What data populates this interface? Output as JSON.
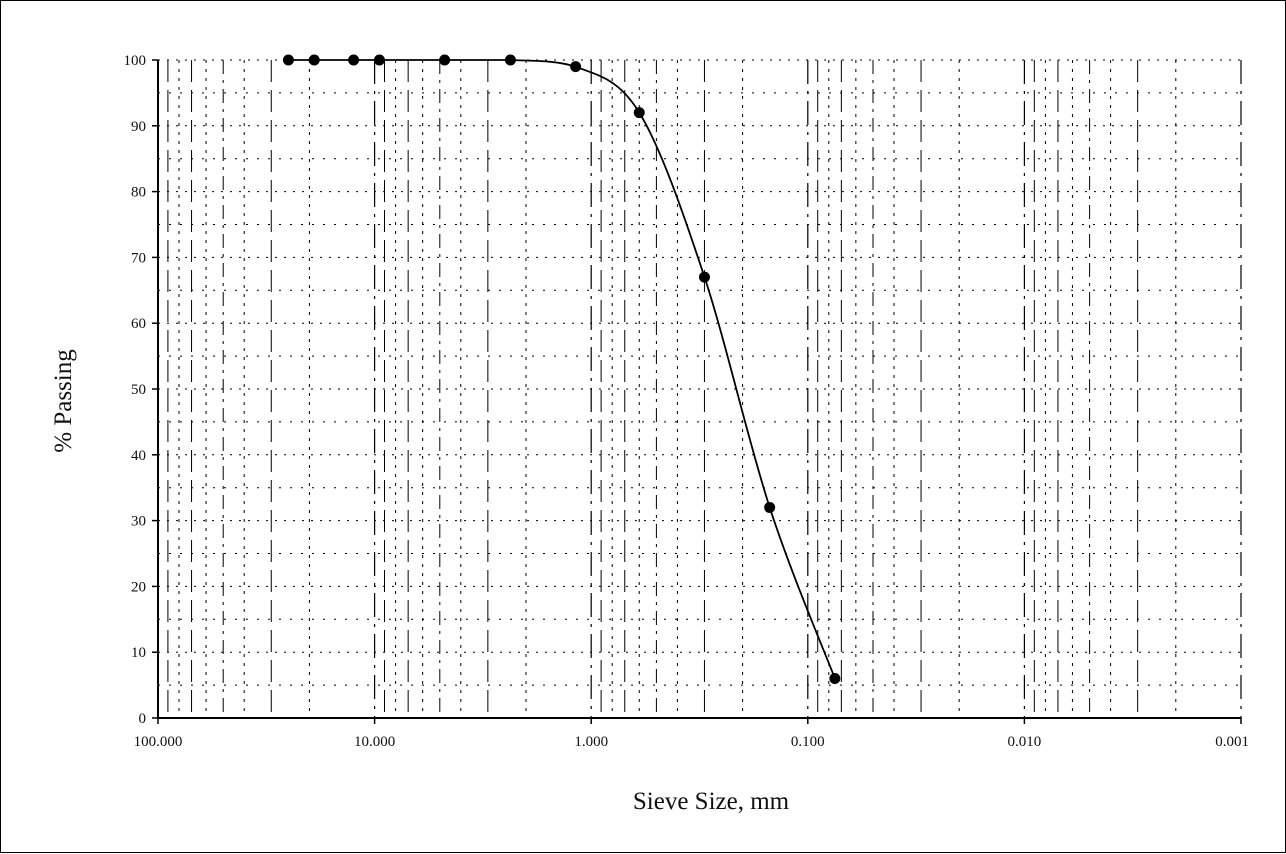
{
  "chart_data": {
    "type": "line",
    "xlabel": "Sieve Size, mm",
    "ylabel": "% Passing",
    "x_scale": "log",
    "x_reversed": true,
    "xlim": [
      100,
      0.001
    ],
    "ylim": [
      0,
      100
    ],
    "x_ticks": [
      100,
      10,
      1,
      0.1,
      0.01,
      0.001
    ],
    "x_tick_labels": [
      "100.000",
      "10.000",
      "1.000",
      "0.100",
      "0.010",
      "0.001"
    ],
    "y_ticks": [
      0,
      10,
      20,
      30,
      40,
      50,
      60,
      70,
      80,
      90,
      100
    ],
    "y_tick_labels": [
      "0",
      "10",
      "20",
      "30",
      "40",
      "50",
      "60",
      "70",
      "80",
      "90",
      "100"
    ],
    "grid": true,
    "series": [
      {
        "x": [
          25,
          19,
          12.5,
          9.5,
          4.75,
          2.36,
          1.18,
          0.6,
          0.3,
          0.15,
          0.075
        ],
        "values": [
          100,
          100,
          100,
          100,
          100,
          100,
          99,
          92,
          67,
          32,
          6
        ]
      }
    ],
    "colors": {
      "line": "#000000",
      "marker": "#000000",
      "grid": "#000000"
    }
  }
}
